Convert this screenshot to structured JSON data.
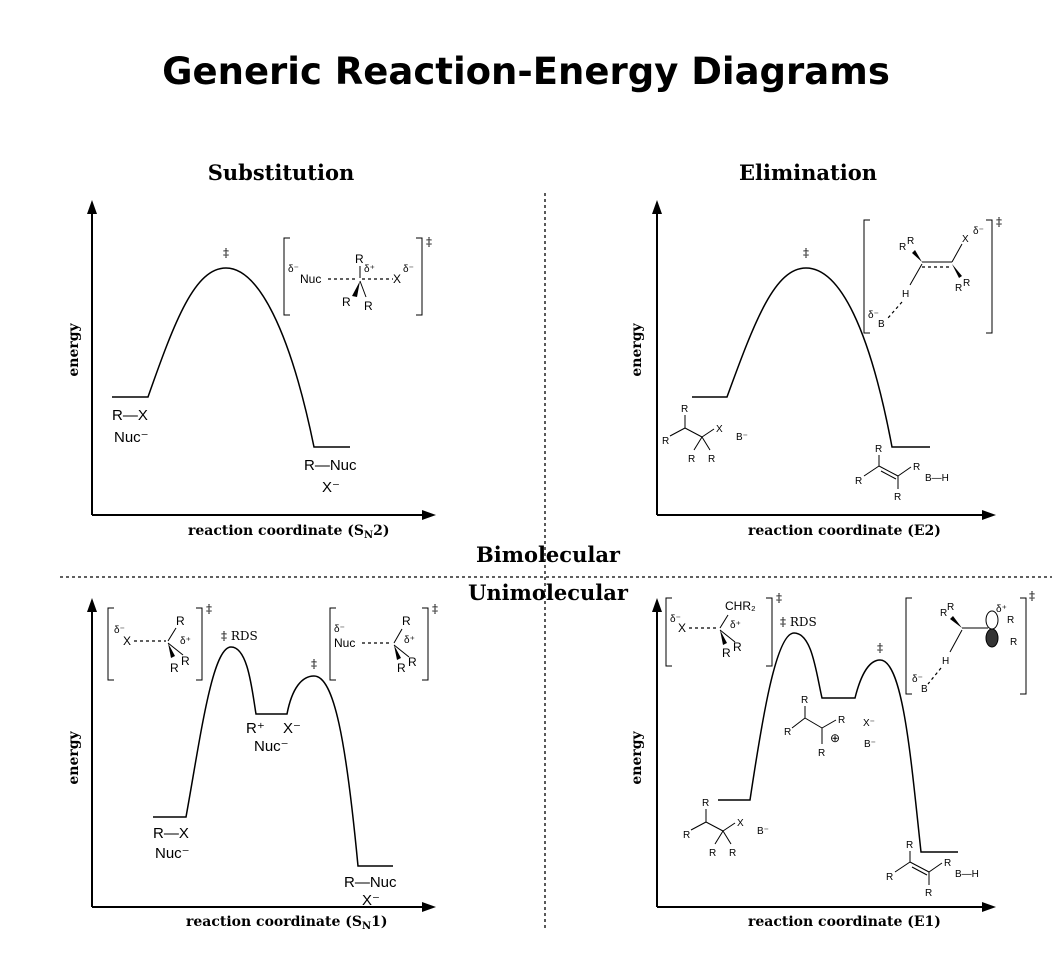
{
  "title": "Generic Reaction-Energy Diagrams",
  "headings": {
    "substitution": "Substitution",
    "elimination": "Elimination"
  },
  "divider": {
    "top": "Bimolecular",
    "bottom": "Unimolecular"
  },
  "labels": {
    "energy": "energy",
    "sn2_axis": "reaction coordinate (S",
    "sn2_sub": "N",
    "sn2_end": "2)",
    "e2_axis": "reaction coordinate (E2)",
    "sn1_axis": "reaction coordinate (S",
    "sn1_sub": "N",
    "sn1_end": "1)",
    "e1_axis": "reaction coordinate (E1)",
    "ts": "‡",
    "rds": "‡ RDS",
    "rx": "R—X",
    "nuc_minus": "Nuc⁻",
    "r_nuc": "R—Nuc",
    "x_minus": "X⁻",
    "r_plus": "R⁺",
    "b_minus": "B⁻",
    "b_h": "B—H",
    "nuc": "Nuc",
    "x": "X",
    "r": "R",
    "h": "H",
    "b": "B",
    "chr2": "CHR₂",
    "delta_minus": "δ⁻",
    "delta_plus": "δ⁺",
    "oplus": "⊕"
  }
}
